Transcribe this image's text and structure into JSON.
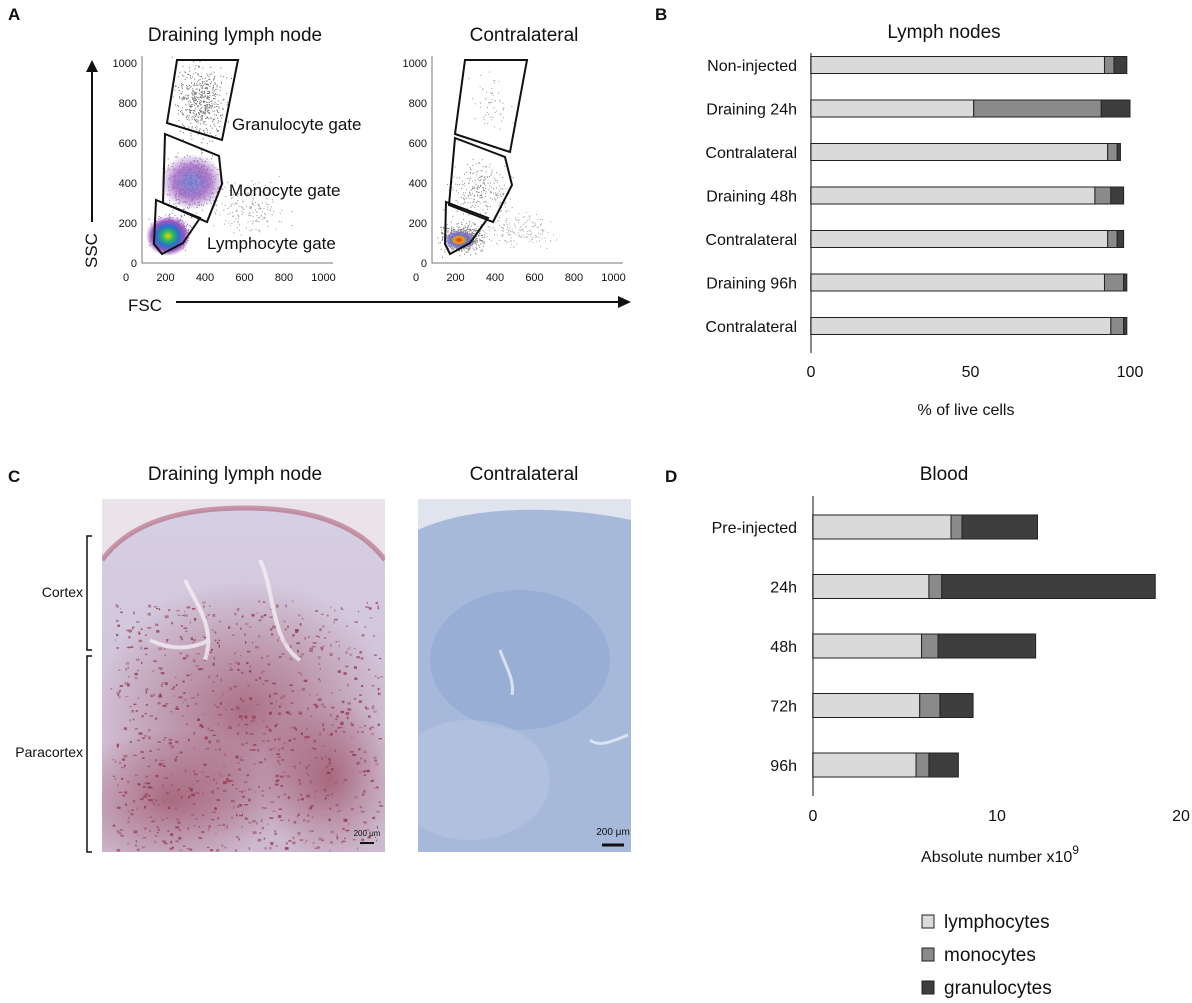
{
  "panels": {
    "a": {
      "label": "A",
      "left_title": "Draining lymph node",
      "right_title": "Contralateral",
      "y_axis_label": "SSC",
      "x_axis_label": "FSC",
      "ticks": [
        "0",
        "200",
        "400",
        "600",
        "800",
        "1000"
      ],
      "gates": {
        "granulocyte": "Granulocyte gate",
        "monocyte": "Monocyte gate",
        "lymphocyte": "Lymphocyte gate"
      }
    },
    "b": {
      "label": "B"
    },
    "c": {
      "label": "C",
      "left_title": "Draining lymph node",
      "right_title": "Contralateral",
      "region_cortex": "Cortex",
      "region_paracortex": "Paracortex",
      "scale_left": "200 μm",
      "scale_right": "200 μm"
    },
    "d": {
      "label": "D"
    }
  },
  "chart_data": [
    {
      "type": "bar",
      "orientation": "horizontal",
      "stacked": true,
      "title": "Lymph nodes",
      "xlabel": "% of live cells",
      "xlim": [
        0,
        100
      ],
      "xticks": [
        "0",
        "50",
        "100"
      ],
      "categories": [
        "Non-injected",
        "Draining 24h",
        "Contralateral",
        "Draining 48h",
        "Contralateral",
        "Draining 96h",
        "Contralateral"
      ],
      "series": [
        {
          "name": "lymphocytes",
          "values": [
            92,
            51,
            93,
            89,
            93,
            92,
            94
          ]
        },
        {
          "name": "monocytes",
          "values": [
            3,
            40,
            3,
            5,
            3,
            6,
            4
          ]
        },
        {
          "name": "granulocytes",
          "values": [
            4,
            9,
            1,
            4,
            2,
            1,
            1
          ]
        }
      ]
    },
    {
      "type": "bar",
      "orientation": "horizontal",
      "stacked": true,
      "title": "Blood",
      "xlabel": "Absolute number x10",
      "xlabel_superscript": "9",
      "xlim": [
        0,
        20
      ],
      "xticks": [
        "0",
        "10",
        "20"
      ],
      "categories": [
        "Pre-injected",
        "24h",
        "48h",
        "72h",
        "96h"
      ],
      "series": [
        {
          "name": "lymphocytes",
          "values": [
            7.5,
            6.3,
            5.9,
            5.8,
            5.6
          ]
        },
        {
          "name": "monocytes",
          "values": [
            0.6,
            0.7,
            0.9,
            1.1,
            0.7
          ]
        },
        {
          "name": "granulocytes",
          "values": [
            4.1,
            11.6,
            5.3,
            1.8,
            1.6
          ]
        }
      ]
    }
  ],
  "legend": {
    "placement": "bottom-right",
    "items": [
      {
        "label": "lymphocytes",
        "color": "#dadada"
      },
      {
        "label": "monocytes",
        "color": "#8a8a8a"
      },
      {
        "label": "granulocytes",
        "color": "#3e3e3e"
      }
    ]
  },
  "colors": {
    "lymphocytes": "#dadada",
    "monocytes": "#8a8a8a",
    "granulocytes": "#3e3e3e",
    "he_tissue": "#c9c2de",
    "stain": "#8e2f44",
    "contra_tissue": "#a3b6da"
  }
}
